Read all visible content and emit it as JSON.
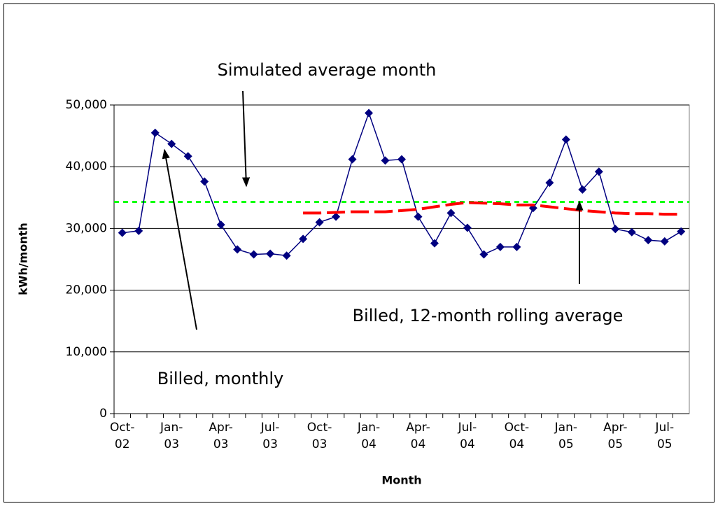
{
  "chart_data": {
    "type": "line",
    "x_label": "Month",
    "y_label": "kWh/month",
    "categories": [
      "Oct-02",
      null,
      null,
      "Jan-03",
      null,
      null,
      "Apr-03",
      null,
      null,
      "Jul-03",
      null,
      null,
      "Oct-03",
      null,
      null,
      "Jan-04",
      null,
      null,
      "Apr-04",
      null,
      null,
      "Jul-04",
      null,
      null,
      "Oct-04",
      null,
      null,
      "Jan-05",
      null,
      null,
      "Apr-05",
      null,
      null,
      "Jul-05",
      null
    ],
    "series": [
      {
        "color": "#000080",
        "style": "marker-line",
        "values": [
          29300,
          29600,
          45500,
          43700,
          41700,
          37600,
          30600,
          26600,
          25800,
          25900,
          25600,
          28300,
          31000,
          31900,
          41200,
          48700,
          41000,
          41200,
          31900,
          27600,
          32500,
          30100,
          25800,
          27000,
          27000,
          33300,
          37400,
          44400,
          36300,
          39200,
          29900,
          29400,
          28100,
          27900,
          29500
        ]
      },
      {
        "color": "#ff0000",
        "style": "dashed",
        "values": [
          null,
          null,
          null,
          null,
          null,
          null,
          null,
          null,
          null,
          null,
          null,
          32500,
          32500,
          32600,
          32700,
          32700,
          32700,
          32900,
          33100,
          33500,
          33900,
          34200,
          34100,
          34000,
          33800,
          33800,
          33500,
          33200,
          32900,
          32700,
          32500,
          32400,
          32400,
          32300,
          32300
        ]
      }
    ],
    "reference_lines": [
      {
        "value": 34300,
        "color": "#00ff00"
      }
    ],
    "annotations": [
      "Simulated average month",
      "Billed, 12-month rolling average",
      "Billed, monthly"
    ],
    "ylim": [
      0,
      50000
    ],
    "yticks": [
      0,
      {
        "value": 10000,
        "label": "10,000"
      },
      {
        "value": 20000,
        "label": "20,000"
      },
      {
        "value": 30000,
        "label": "30,000"
      },
      {
        "value": 40000,
        "label": "40,000"
      },
      {
        "value": 50000,
        "label": "50,000"
      }
    ],
    "grid": true
  }
}
